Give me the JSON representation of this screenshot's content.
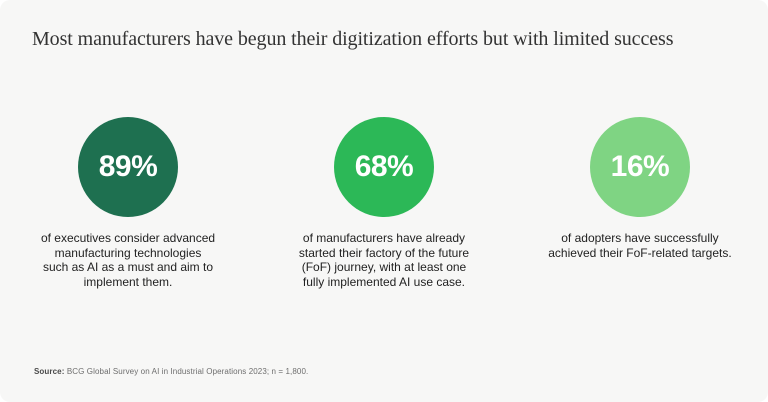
{
  "title": "Most manufacturers have begun their digitization efforts but with limited success",
  "stats": [
    {
      "value": "89%",
      "color": "#1E7050",
      "description": "of executives consider advanced manufacturing technologies such as AI as a must and aim to implement them.",
      "lines": [
        "of executives consider advanced",
        "manufacturing technologies",
        "such as AI as a must and aim to",
        "implement them."
      ]
    },
    {
      "value": "68%",
      "color": "#2CB857",
      "description": "of manufacturers have already started their factory of the future (FoF) journey, with at least one fully implemented AI use case.",
      "lines": [
        "of manufacturers have already",
        "started their factory of the future",
        "(FoF) journey, with at least one",
        "fully implemented AI use case."
      ]
    },
    {
      "value": "16%",
      "color": "#7FD483",
      "description": "of adopters have successfully achieved their FoF-related targets.",
      "lines": [
        "of adopters have successfully",
        "achieved their FoF-related targets."
      ]
    }
  ],
  "source": {
    "label": "Source:",
    "text": " BCG Global Survey on AI in Industrial Operations 2023; n = 1,800."
  },
  "colors": {
    "panel_background": "#F7F7F6",
    "page_background": "#FFFFFF",
    "title_text": "#333333",
    "body_text": "#222222",
    "circle_text": "#FFFFFF",
    "source_text": "#6E6E6E",
    "circle_colors": [
      "#1E7050",
      "#2CB857",
      "#7FD483"
    ]
  },
  "chart_data": {
    "type": "bar",
    "layout": "kpi-circles",
    "title": "Most manufacturers have begun their digitization efforts but with limited success",
    "categories": [
      "Executives who consider advanced manufacturing technologies such as AI a must and aim to implement them",
      "Manufacturers that have already started their factory of the future (FoF) journey, with at least one fully implemented AI use case",
      "Adopters that have successfully achieved their FoF-related targets"
    ],
    "values": [
      89,
      68,
      16
    ],
    "unit": "%",
    "colors": [
      "#1E7050",
      "#2CB857",
      "#7FD483"
    ],
    "source": "BCG Global Survey on AI in Industrial Operations 2023; n = 1,800."
  }
}
